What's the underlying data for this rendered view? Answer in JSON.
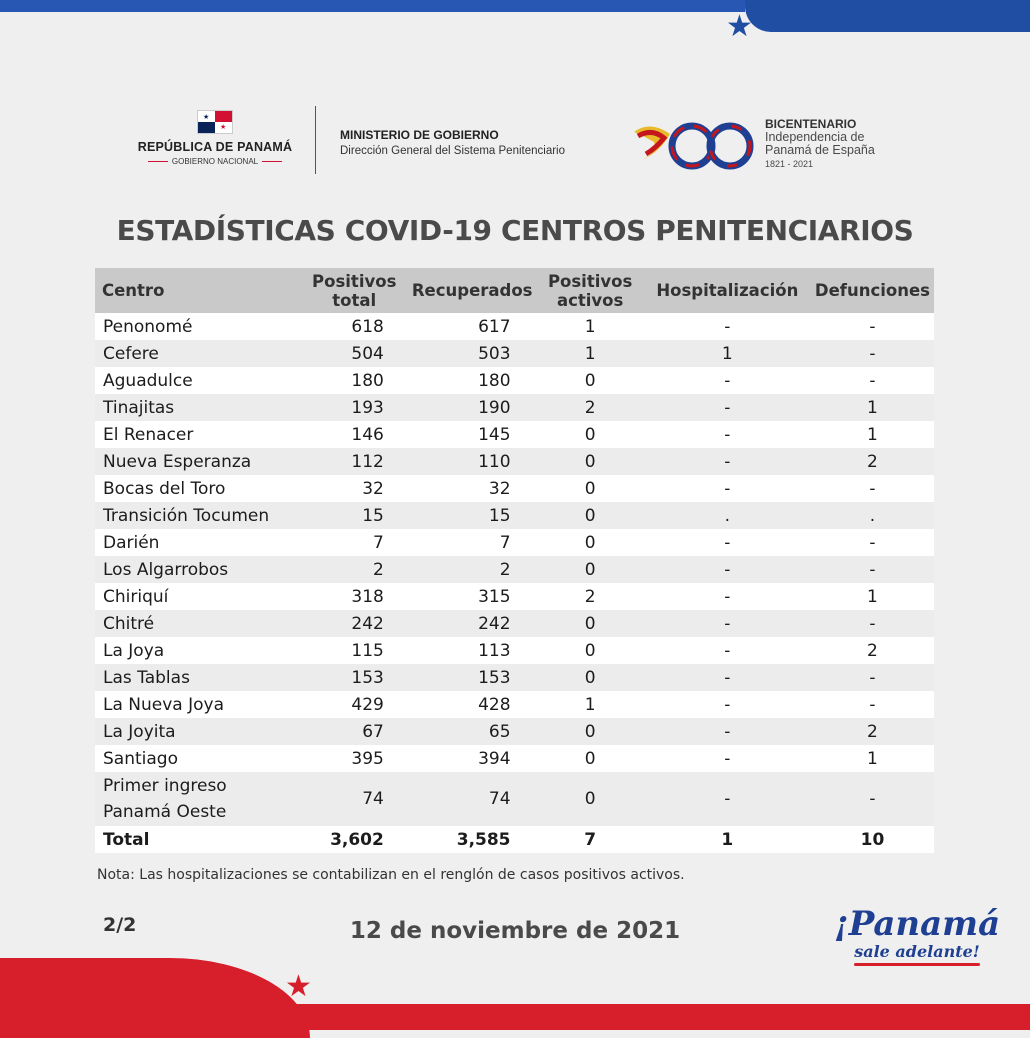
{
  "header": {
    "republica_title": "REPÚBLICA DE PANAMÁ",
    "republica_sub": "GOBIERNO NACIONAL",
    "ministerio_title": "MINISTERIO DE GOBIERNO",
    "ministerio_sub": "Dirección General del Sistema Penitenciario",
    "bicentenario_title": "BICENTENARIO",
    "bicentenario_line1": "Independencia de",
    "bicentenario_line2": "Panamá de España",
    "bicentenario_years": "1821 - 2021"
  },
  "heading": "ESTADÍSTICAS COVID-19 CENTROS PENITENCIARIOS",
  "table": {
    "columns": [
      "Centro",
      "Positivos total",
      "Recuperados",
      "Positivos activos",
      "Hospitalización",
      "Defunciones"
    ],
    "rows": [
      [
        "Penonomé",
        "618",
        "617",
        "1",
        "-",
        "-"
      ],
      [
        "Cefere",
        "504",
        "503",
        "1",
        "1",
        "-"
      ],
      [
        "Aguadulce",
        "180",
        "180",
        "0",
        "-",
        "-"
      ],
      [
        "Tinajitas",
        "193",
        "190",
        "2",
        "-",
        "1"
      ],
      [
        "El Renacer",
        "146",
        "145",
        "0",
        "-",
        "1"
      ],
      [
        "Nueva Esperanza",
        "112",
        "110",
        "0",
        "-",
        "2"
      ],
      [
        "Bocas del Toro",
        "32",
        "32",
        "0",
        "-",
        "-"
      ],
      [
        "Transición Tocumen",
        "15",
        "15",
        "0",
        ".",
        "."
      ],
      [
        "Darién",
        "7",
        "7",
        "0",
        "-",
        "-"
      ],
      [
        "Los Algarrobos",
        "2",
        "2",
        "0",
        "-",
        "-"
      ],
      [
        "Chiriquí",
        "318",
        "315",
        "2",
        "-",
        "1"
      ],
      [
        "Chitré",
        "242",
        "242",
        "0",
        "-",
        "-"
      ],
      [
        "La Joya",
        "115",
        "113",
        "0",
        "-",
        "2"
      ],
      [
        "Las Tablas",
        "153",
        "153",
        "0",
        "-",
        "-"
      ],
      [
        "La Nueva Joya",
        "429",
        "428",
        "1",
        "-",
        "-"
      ],
      [
        "La Joyita",
        "67",
        "65",
        "0",
        "-",
        "2"
      ],
      [
        "Santiago",
        "395",
        "394",
        "0",
        "-",
        "1"
      ]
    ],
    "last_row": {
      "name_line1": "Primer ingreso",
      "name_line2": "Panamá Oeste",
      "values": [
        "74",
        "74",
        "0",
        "-",
        "-"
      ]
    },
    "total": [
      "Total",
      "3,602",
      "3,585",
      "7",
      "1",
      "10"
    ]
  },
  "note": "Nota:  Las hospitalizaciones se contabilizan en el renglón de casos positivos activos.",
  "page_indicator": "2/2",
  "date": "12 de noviembre de 2021",
  "brand": {
    "main": "¡Panamá",
    "sub": "sale adelante!"
  },
  "colors": {
    "blue": "#1f4ea3",
    "red": "#d71f2b",
    "header_gray": "#c9c9c9"
  }
}
